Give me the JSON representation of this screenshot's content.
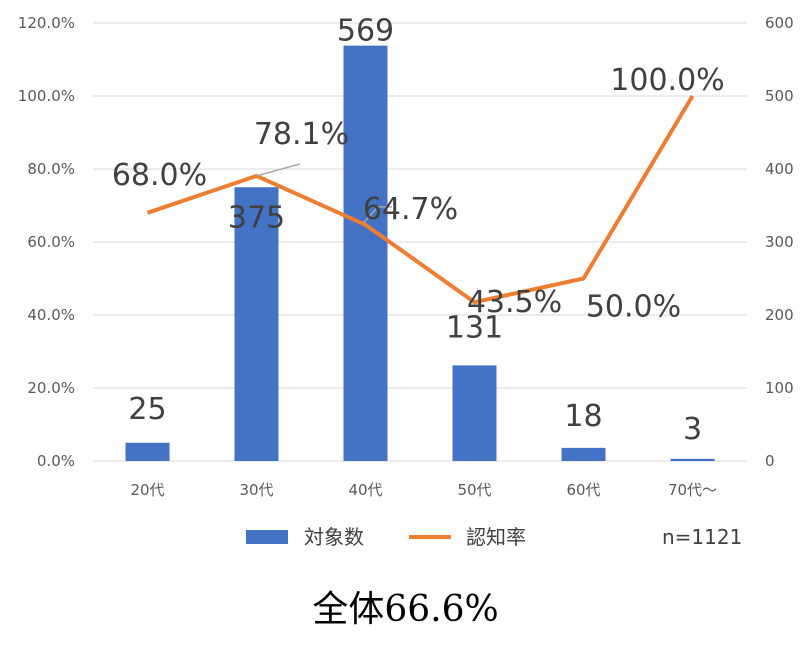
{
  "chart_data": {
    "type": "bar+line",
    "categories": [
      "20代",
      "30代",
      "40代",
      "50代",
      "60代",
      "70代〜"
    ],
    "bar_series": {
      "name": "対象数",
      "values": [
        25,
        375,
        569,
        131,
        18,
        3
      ],
      "value_labels": [
        "25",
        "375",
        "569",
        "131",
        "18",
        "3"
      ],
      "color": "#4472C4",
      "axis": "right",
      "axis_range": [
        0,
        600
      ],
      "axis_ticks": [
        "0",
        "100",
        "200",
        "300",
        "400",
        "500",
        "600"
      ]
    },
    "line_series": {
      "name": "認知率",
      "values": [
        68.0,
        78.1,
        64.7,
        43.5,
        50.0,
        100.0
      ],
      "value_labels": [
        "68.0%",
        "78.1%",
        "64.7%",
        "43.5%",
        "50.0%",
        "100.0%"
      ],
      "color": "#ED7D31",
      "axis": "left",
      "axis_range": [
        0,
        120
      ],
      "axis_ticks": [
        "0.0%",
        "20.0%",
        "40.0%",
        "60.0%",
        "80.0%",
        "100.0%",
        "120.0%"
      ]
    },
    "grid": true,
    "legend_position": "bottom",
    "note": "n=1121"
  },
  "footer_text": "全体66.6%"
}
